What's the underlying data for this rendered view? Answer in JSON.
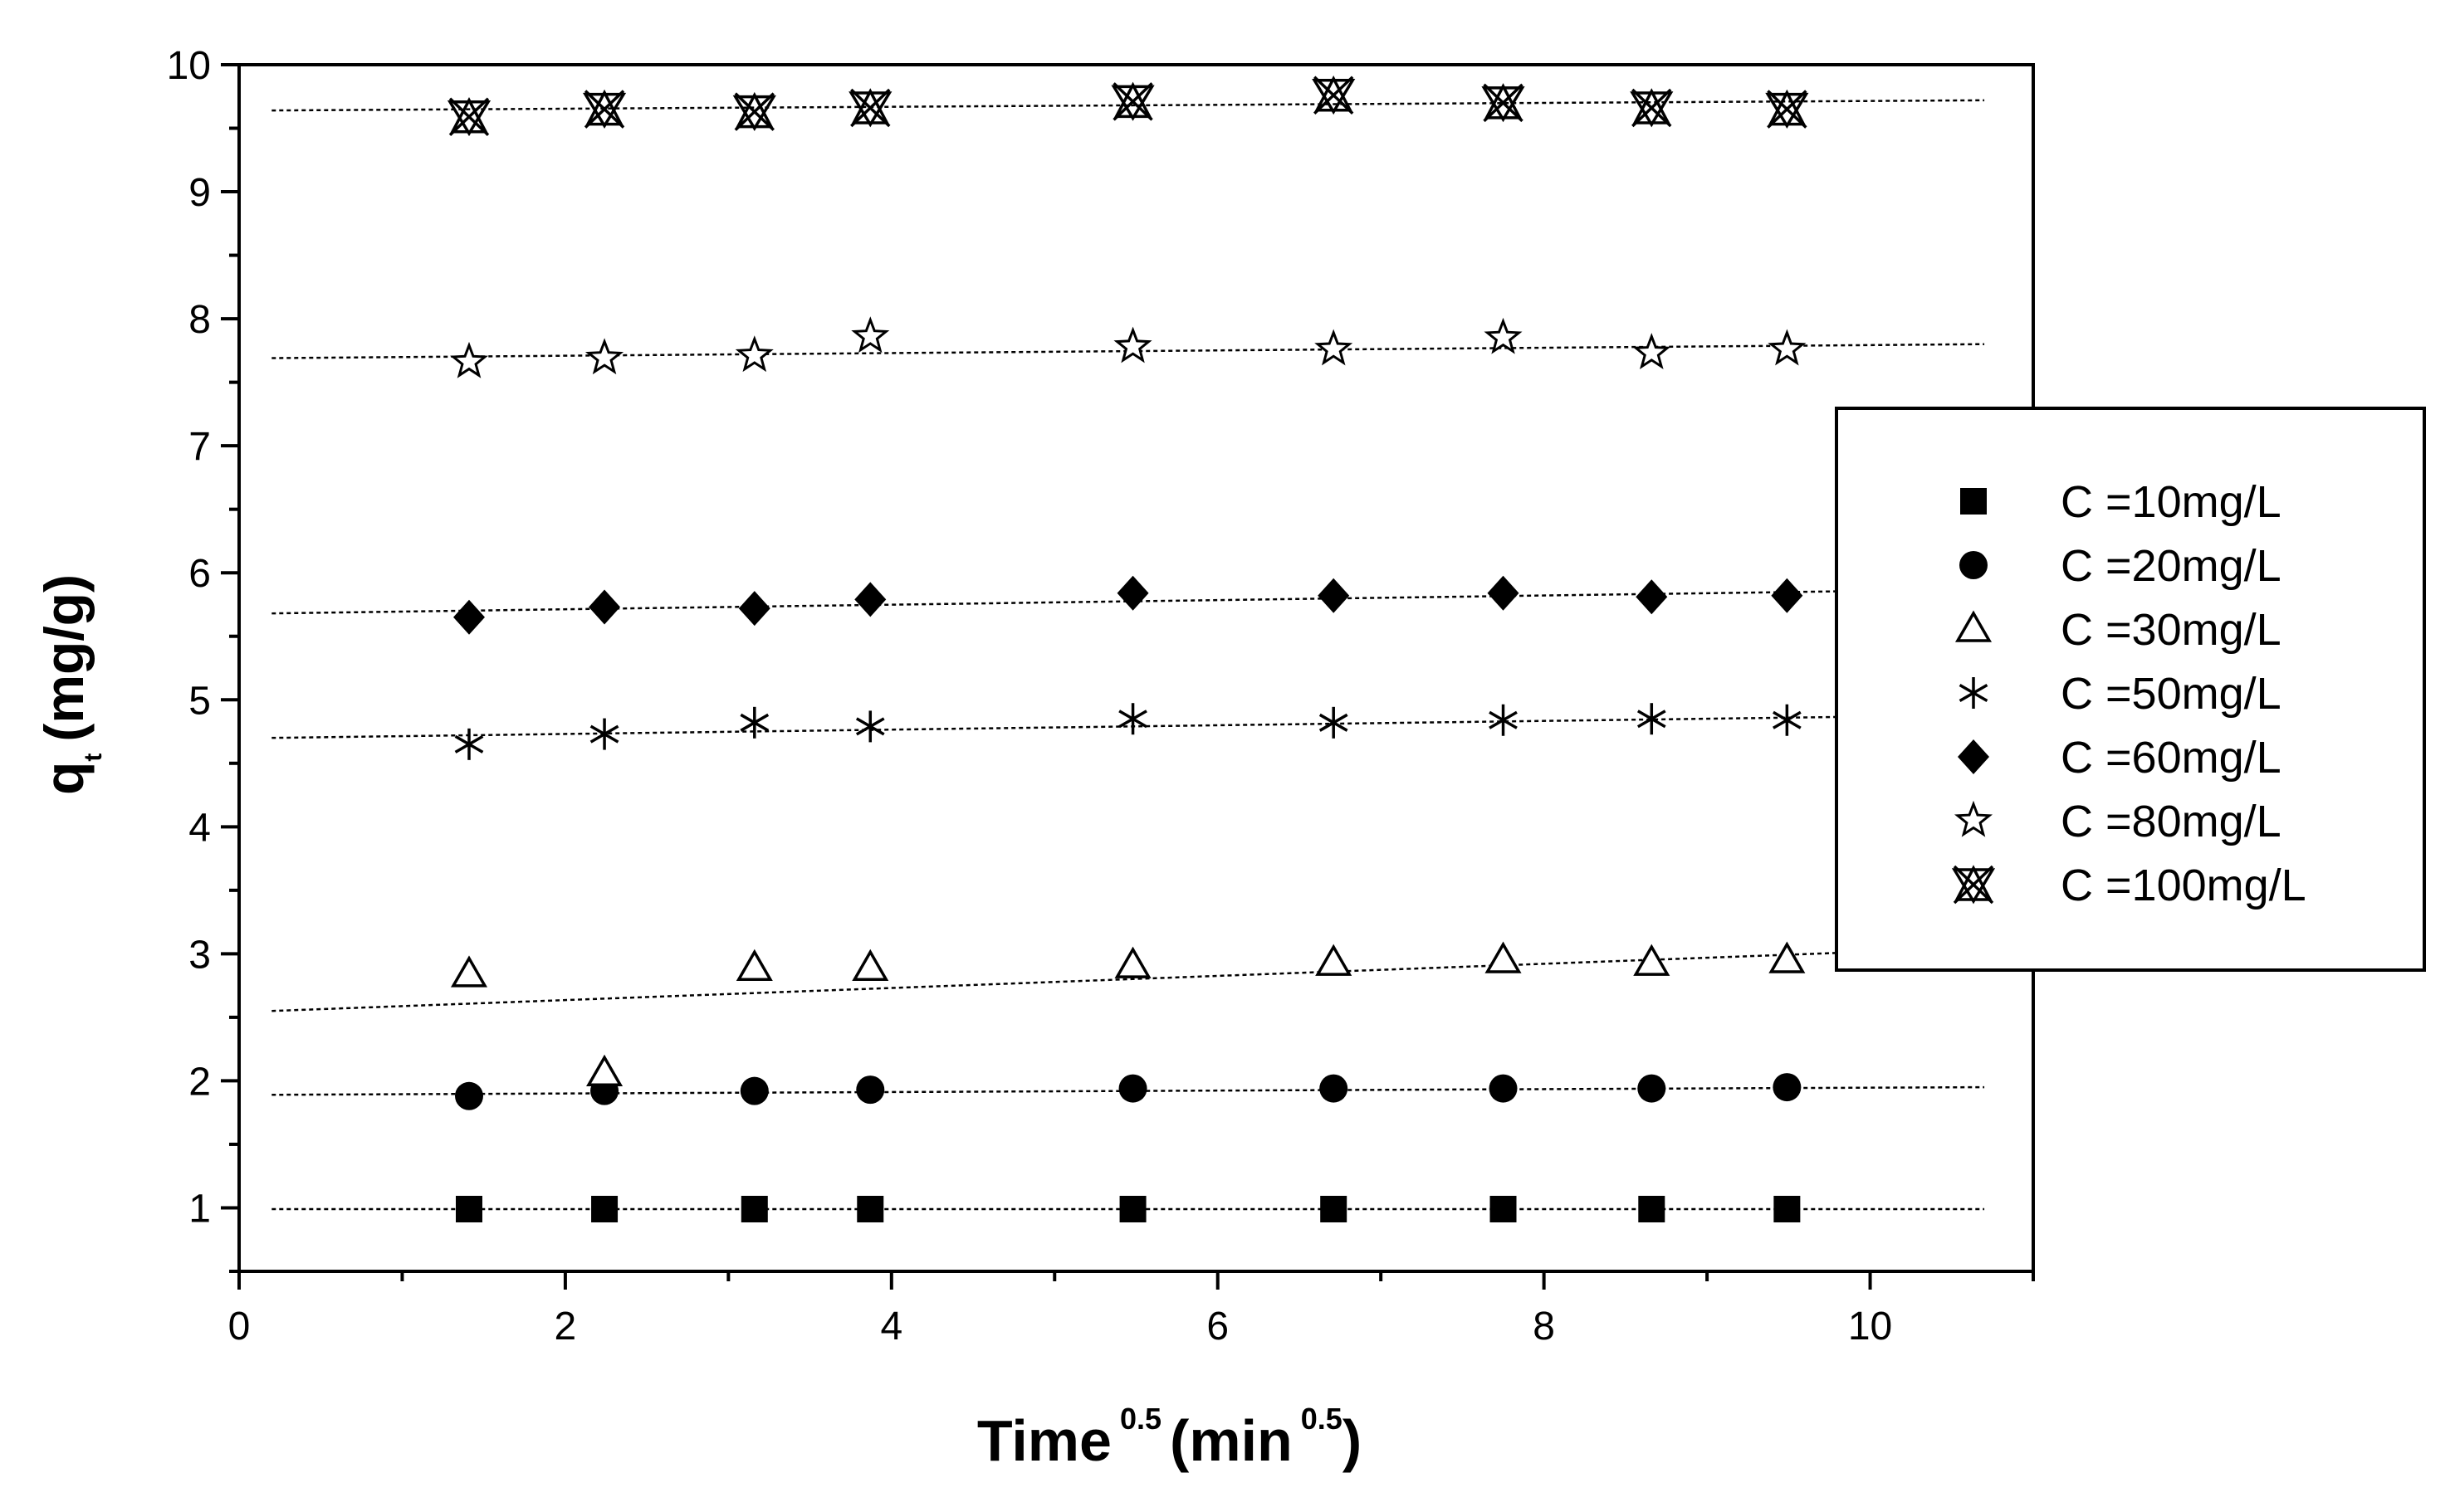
{
  "chart_data": {
    "type": "scatter",
    "xlabel": "Time",
    "xlabel_sup": "0.5",
    "xlabel_unit": "(min",
    "xlabel_unit_sup": "0.5",
    "xlabel_close": ")",
    "ylabel_main": "q",
    "ylabel_sub": "t",
    "ylabel_unit": "(mg/g)",
    "xlim": [
      0,
      11
    ],
    "ylim": [
      0.5,
      10
    ],
    "x_ticks": [
      0,
      2,
      4,
      6,
      8,
      10
    ],
    "x_tick_labels": [
      "0",
      "2",
      "4",
      "6",
      "8",
      "10"
    ],
    "y_ticks": [
      1,
      2,
      3,
      4,
      5,
      6,
      7,
      8,
      9,
      10
    ],
    "y_tick_labels": [
      "1",
      "2",
      "3",
      "4",
      "5",
      "6",
      "7",
      "8",
      "9",
      "10"
    ],
    "grid": false,
    "legend_position": "right",
    "x": [
      1.41,
      2.24,
      3.16,
      3.87,
      5.48,
      6.71,
      7.75,
      8.66,
      9.49
    ],
    "series": [
      {
        "name": "C =10mg/L",
        "marker": "filled-square",
        "values": [
          0.99,
          0.99,
          0.99,
          0.99,
          0.99,
          0.99,
          0.99,
          0.99,
          0.99
        ],
        "fit": {
          "x": [
            0.2,
            10.7
          ],
          "y": [
            0.99,
            0.99
          ]
        }
      },
      {
        "name": "C =20mg/L",
        "marker": "filled-circle",
        "values": [
          1.88,
          1.92,
          1.92,
          1.93,
          1.94,
          1.94,
          1.94,
          1.94,
          1.95
        ],
        "fit": {
          "x": [
            0.2,
            10.7
          ],
          "y": [
            1.89,
            1.95
          ]
        }
      },
      {
        "name": "C =30mg/L",
        "marker": "open-triangle",
        "values": [
          2.84,
          2.06,
          2.89,
          2.89,
          2.91,
          2.93,
          2.95,
          2.93,
          2.95
        ],
        "fit": {
          "x": [
            0.2,
            10.7
          ],
          "y": [
            2.55,
            3.05
          ]
        }
      },
      {
        "name": "C =50mg/L",
        "marker": "asterisk",
        "values": [
          4.65,
          4.73,
          4.82,
          4.79,
          4.85,
          4.82,
          4.84,
          4.85,
          4.84
        ],
        "fit": {
          "x": [
            0.2,
            10.7
          ],
          "y": [
            4.7,
            4.88
          ]
        }
      },
      {
        "name": "C =60mg/L",
        "marker": "filled-diamond",
        "values": [
          5.65,
          5.73,
          5.72,
          5.79,
          5.84,
          5.82,
          5.84,
          5.81,
          5.82
        ],
        "fit": {
          "x": [
            0.2,
            10.7
          ],
          "y": [
            5.68,
            5.87
          ]
        }
      },
      {
        "name": "C =80mg/L",
        "marker": "open-star",
        "values": [
          7.66,
          7.69,
          7.71,
          7.86,
          7.78,
          7.76,
          7.85,
          7.73,
          7.76
        ],
        "fit": {
          "x": [
            0.2,
            10.7
          ],
          "y": [
            7.69,
            7.8
          ]
        }
      },
      {
        "name": "C =100mg/L",
        "marker": "crossed-triangles",
        "values": [
          9.59,
          9.65,
          9.63,
          9.66,
          9.71,
          9.76,
          9.7,
          9.66,
          9.65
        ],
        "fit": {
          "x": [
            0.2,
            10.7
          ],
          "y": [
            9.64,
            9.72
          ]
        }
      }
    ]
  }
}
